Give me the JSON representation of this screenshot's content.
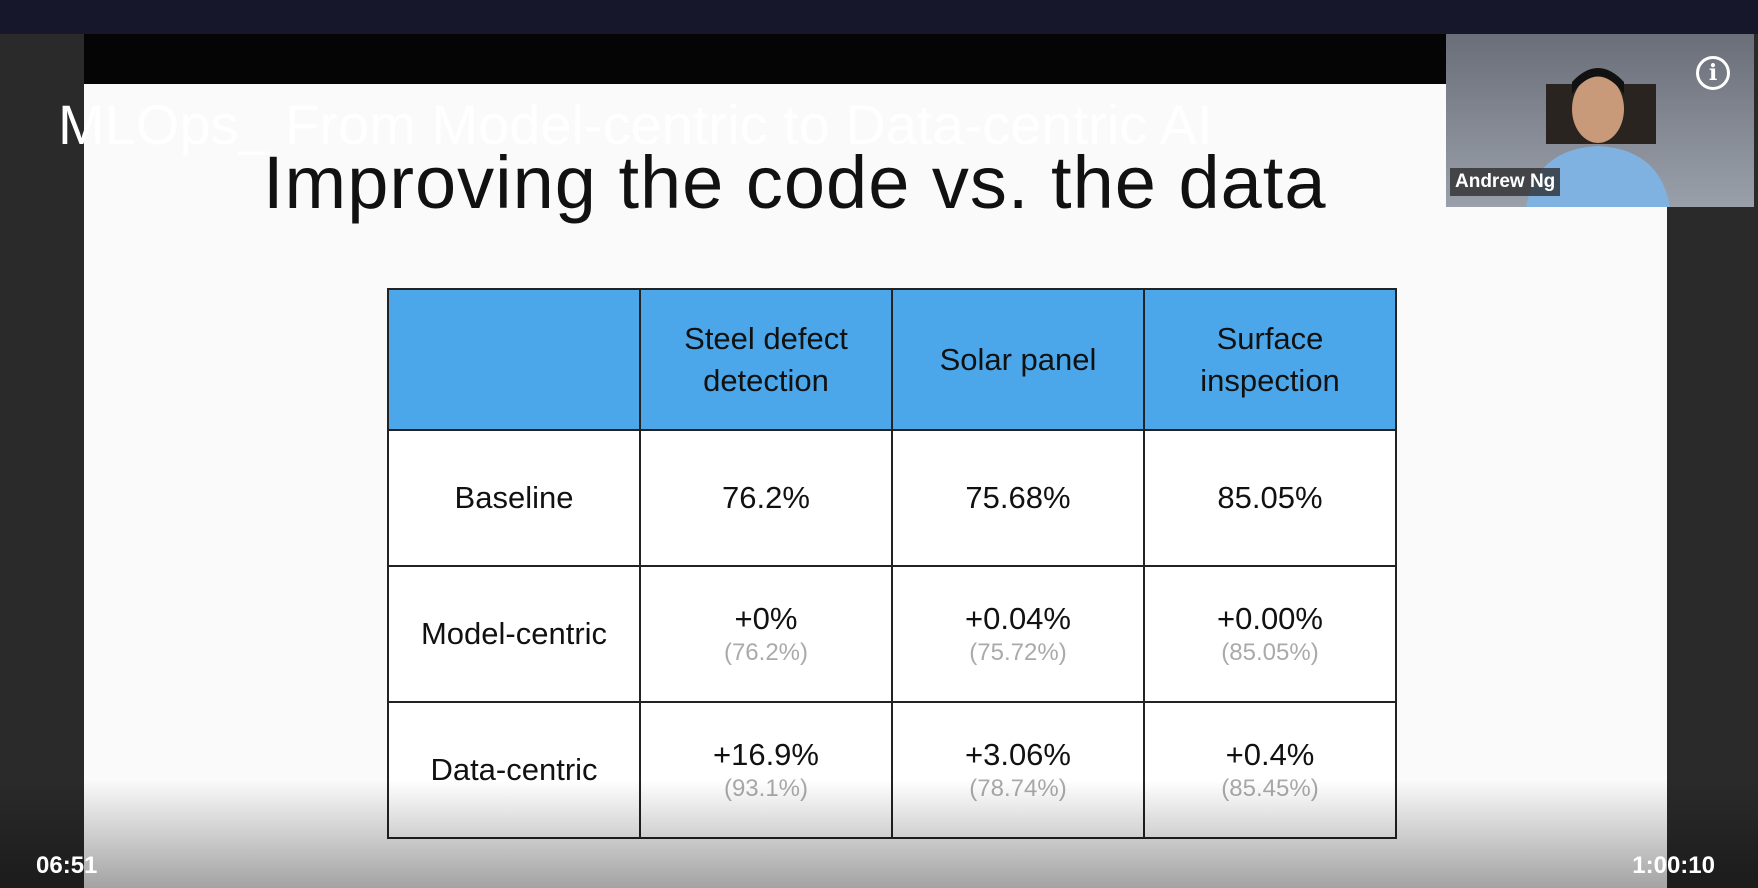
{
  "video_title": "MLOps_ From Model-centric to Data-centric AI",
  "slide": {
    "title": "Improving the code vs. the data",
    "table": {
      "columns": [
        "Steel defect detection",
        "Solar panel",
        "Surface inspection"
      ],
      "rows": [
        {
          "label": "Baseline",
          "cells": [
            {
              "main": "76.2%"
            },
            {
              "main": "75.68%"
            },
            {
              "main": "85.05%"
            }
          ]
        },
        {
          "label": "Model-centric",
          "cells": [
            {
              "main": "+0%",
              "sub": "(76.2%)"
            },
            {
              "main": "+0.04%",
              "sub": "(75.72%)"
            },
            {
              "main": "+0.00%",
              "sub": "(85.05%)"
            }
          ]
        },
        {
          "label": "Data-centric",
          "cells": [
            {
              "main": "+16.9%",
              "sub": "(93.1%)"
            },
            {
              "main": "+3.06%",
              "sub": "(78.74%)"
            },
            {
              "main": "+0.4%",
              "sub": "(85.45%)"
            }
          ]
        }
      ]
    }
  },
  "speaker": "Andrew Ng",
  "player": {
    "current_time": "06:51",
    "duration": "1:00:10"
  }
}
